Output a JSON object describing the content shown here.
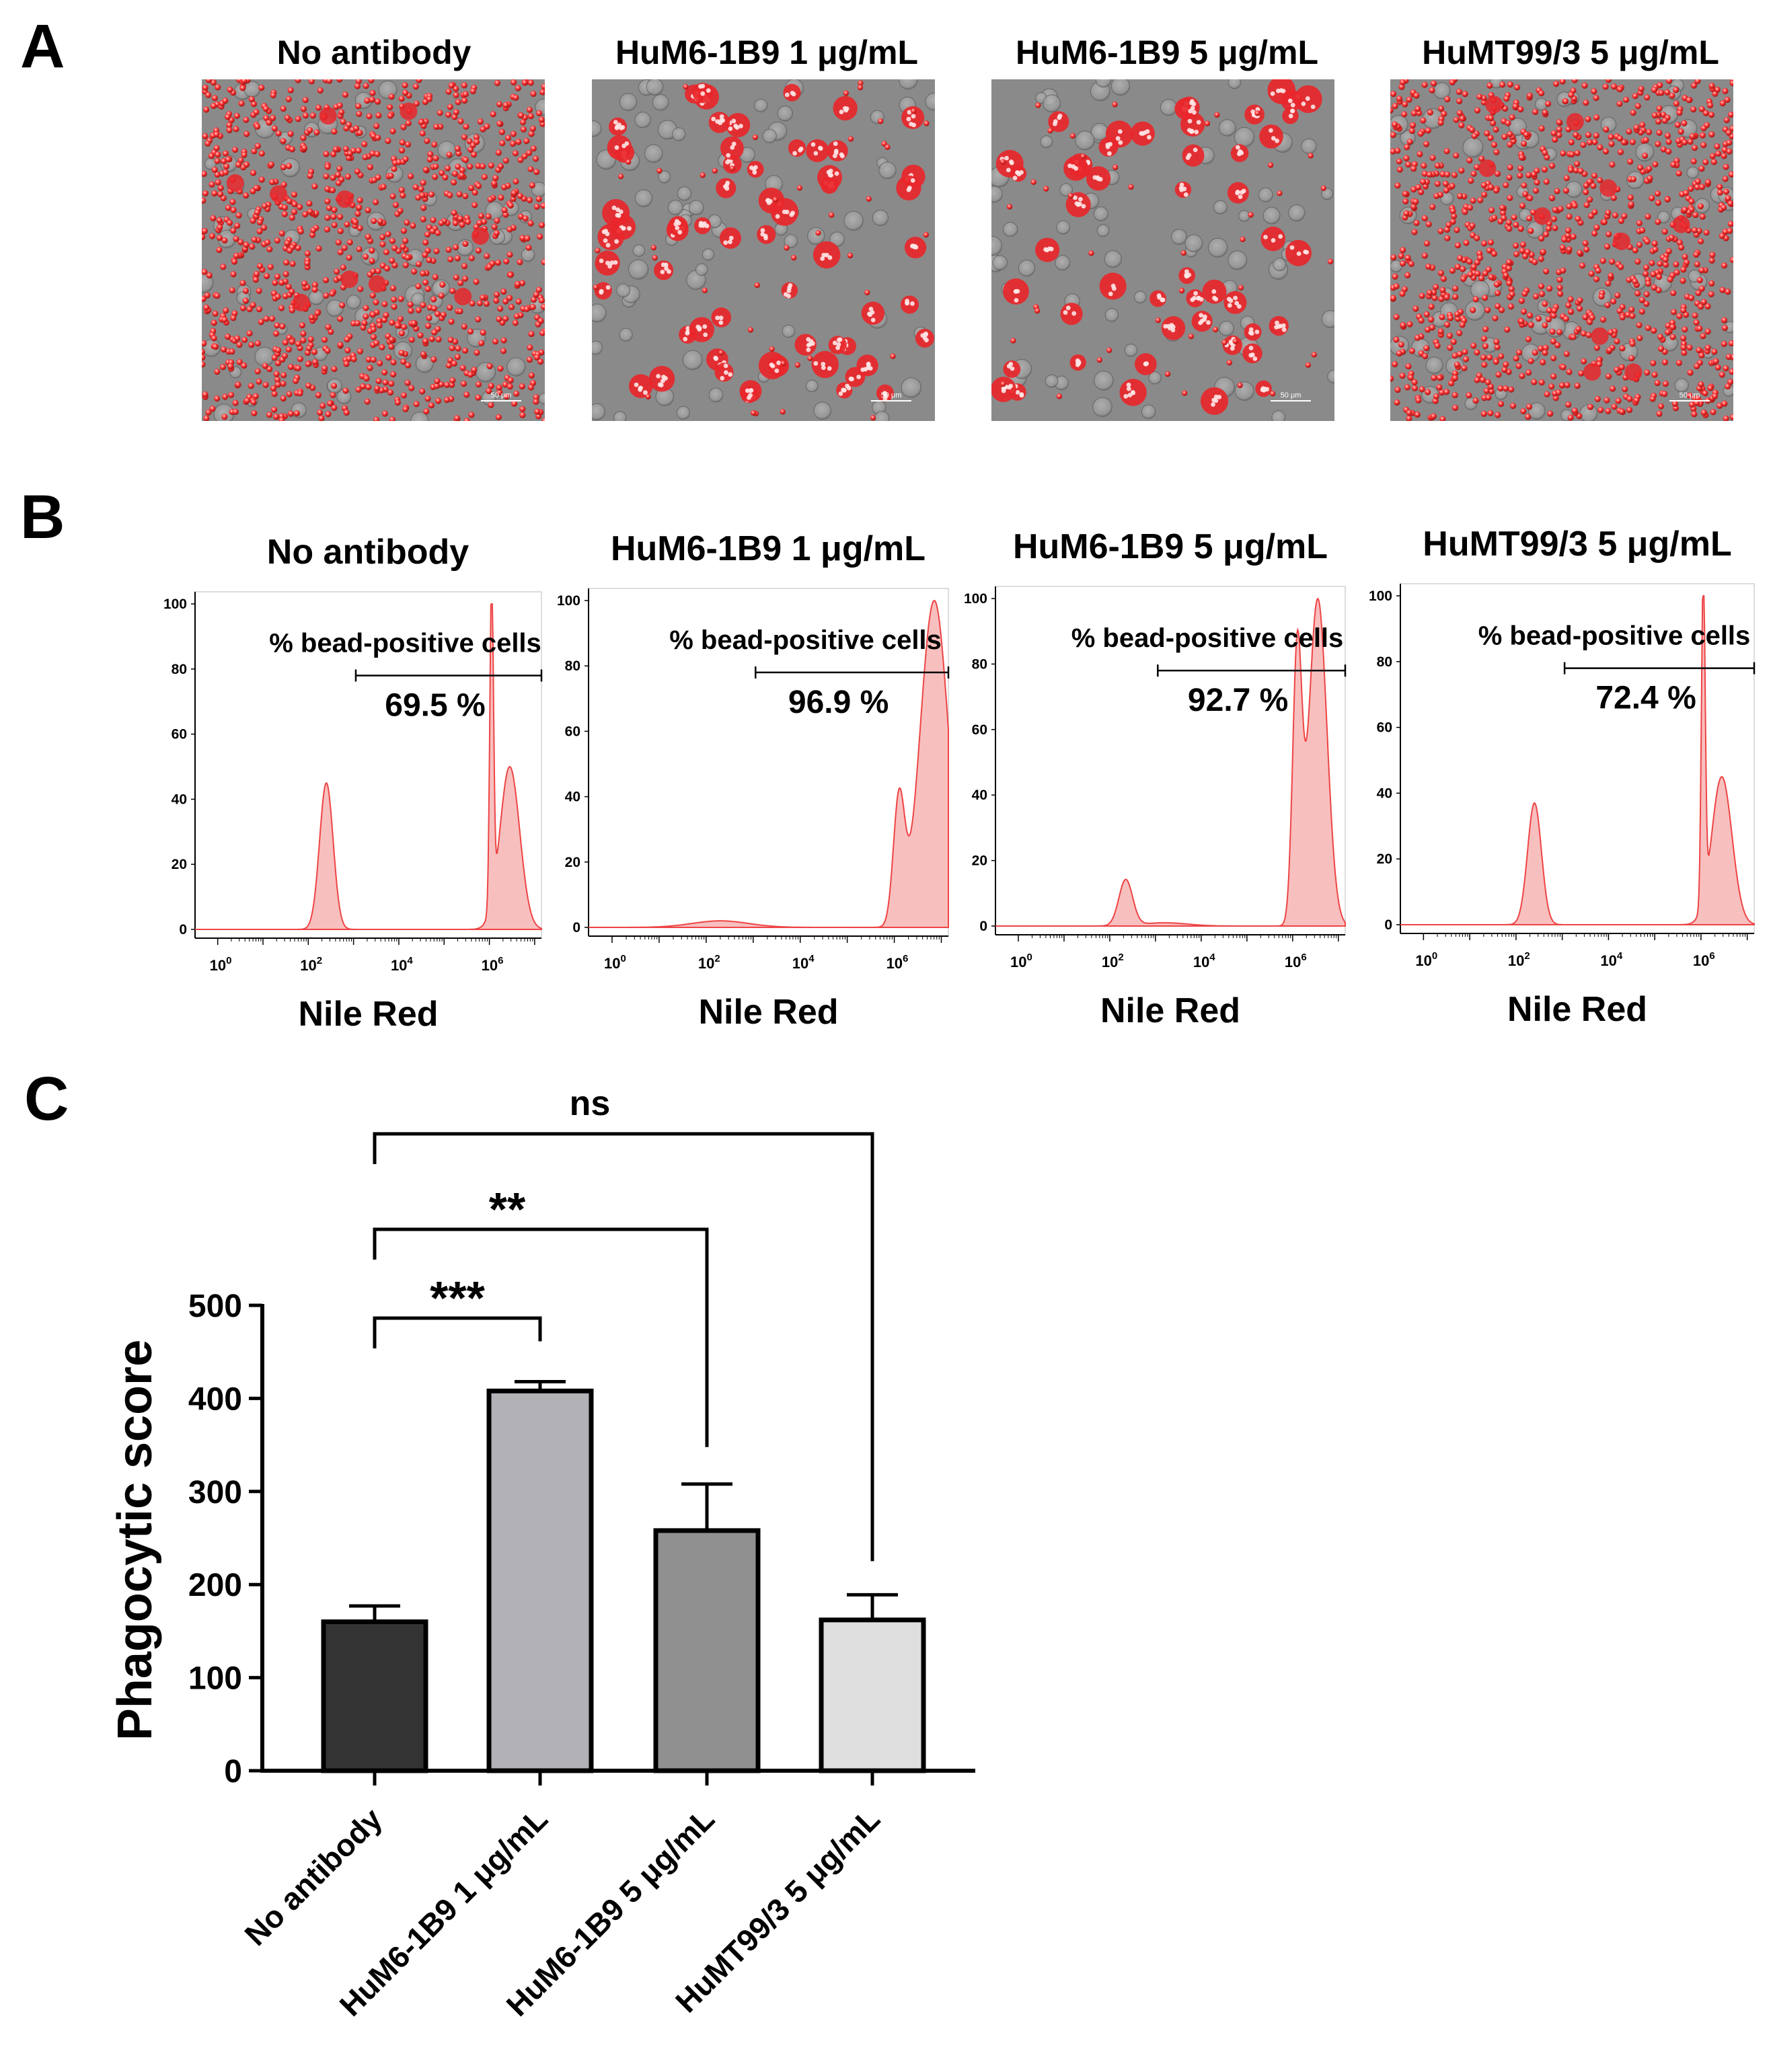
{
  "panels": {
    "a": {
      "letter": "A",
      "titles": [
        "No antibody",
        "HuM6-1B9 1 μg/mL",
        "HuM6-1B9 5 μg/mL",
        "HuMT99/3 5 μg/mL"
      ],
      "scale_bar_label": "50 μm",
      "cell_color": "#e8262a",
      "background_color": "#8a8a8a"
    },
    "b": {
      "letter": "B",
      "xlabel": "Nile Red",
      "gate_label": "% bead-positive cells",
      "histogram_fill": "#f7b8b8",
      "histogram_stroke": "#ee4444",
      "plots": [
        {
          "title": "No antibody",
          "gate_percent": "69.5 %"
        },
        {
          "title": "HuM6-1B9 1 μg/mL",
          "gate_percent": "96.9 %"
        },
        {
          "title": "HuM6-1B9 5 μg/mL",
          "gate_percent": "92.7 %"
        },
        {
          "title": "HuMT99/3 5 μg/mL",
          "gate_percent": "72.4 %"
        }
      ]
    },
    "c": {
      "letter": "C"
    }
  },
  "chart_data": [
    {
      "type": "area",
      "title": "No antibody",
      "xlabel": "Nile Red",
      "xscale": "log",
      "x_ticks": [
        "10^0",
        "10^2",
        "10^4",
        "10^6"
      ],
      "y_ticks": [
        0,
        20,
        40,
        60,
        80,
        100
      ],
      "ylim": [
        0,
        100
      ],
      "annotation": "% bead-positive cells",
      "gate_value": 69.5,
      "peaks": [
        {
          "log10_x": 2.4,
          "height": 45,
          "width": 0.15
        },
        {
          "log10_x": 6.05,
          "height": 100,
          "width": 0.04
        },
        {
          "log10_x": 6.45,
          "height": 50,
          "width": 0.22
        }
      ]
    },
    {
      "type": "area",
      "title": "HuM6-1B9 1 μg/mL",
      "xlabel": "Nile Red",
      "xscale": "log",
      "x_ticks": [
        "10^0",
        "10^2",
        "10^4",
        "10^6"
      ],
      "y_ticks": [
        0,
        20,
        40,
        60,
        80,
        100
      ],
      "ylim": [
        0,
        100
      ],
      "annotation": "% bead-positive cells",
      "gate_value": 96.9,
      "peaks": [
        {
          "log10_x": 2.3,
          "height": 2,
          "width": 0.6
        },
        {
          "log10_x": 6.1,
          "height": 38,
          "width": 0.12
        },
        {
          "log10_x": 6.85,
          "height": 100,
          "width": 0.3
        }
      ]
    },
    {
      "type": "area",
      "title": "HuM6-1B9 5 μg/mL",
      "xlabel": "Nile Red",
      "xscale": "log",
      "x_ticks": [
        "10^0",
        "10^2",
        "10^4",
        "10^6"
      ],
      "y_ticks": [
        0,
        20,
        40,
        60,
        80,
        100
      ],
      "ylim": [
        0,
        100
      ],
      "annotation": "% bead-positive cells",
      "gate_value": 92.7,
      "peaks": [
        {
          "log10_x": 2.35,
          "height": 14,
          "width": 0.15
        },
        {
          "log10_x": 3.2,
          "height": 1,
          "width": 0.5
        },
        {
          "log10_x": 6.1,
          "height": 82,
          "width": 0.1
        },
        {
          "log10_x": 6.55,
          "height": 100,
          "width": 0.2
        }
      ]
    },
    {
      "type": "area",
      "title": "HuMT99/3 5 μg/mL",
      "xlabel": "Nile Red",
      "xscale": "log",
      "x_ticks": [
        "10^0",
        "10^2",
        "10^4",
        "10^6"
      ],
      "y_ticks": [
        0,
        20,
        40,
        60,
        80,
        100
      ],
      "ylim": [
        0,
        100
      ],
      "annotation": "% bead-positive cells",
      "gate_value": 72.4,
      "peaks": [
        {
          "log10_x": 2.4,
          "height": 37,
          "width": 0.15
        },
        {
          "log10_x": 6.05,
          "height": 100,
          "width": 0.04
        },
        {
          "log10_x": 6.45,
          "height": 45,
          "width": 0.22
        }
      ]
    },
    {
      "type": "bar",
      "categories": [
        "No antibody",
        "HuM6-1B9 1 μg/mL",
        "HuM6-1B9 5 μg/mL",
        "HuMT99/3 5 μg/mL"
      ],
      "values": [
        160,
        408,
        258,
        162
      ],
      "errors": [
        17,
        10,
        50,
        27
      ],
      "colors": [
        "#333333",
        "#b1b1b6",
        "#909090",
        "#dedede"
      ],
      "ylabel": "Phagocytic score",
      "ylim": [
        0,
        500
      ],
      "y_ticks": [
        0,
        100,
        200,
        300,
        400,
        500
      ],
      "significance": [
        {
          "from": 0,
          "to": 1,
          "label": "***"
        },
        {
          "from": 0,
          "to": 2,
          "label": "**"
        },
        {
          "from": 0,
          "to": 3,
          "label": "ns"
        }
      ]
    }
  ]
}
